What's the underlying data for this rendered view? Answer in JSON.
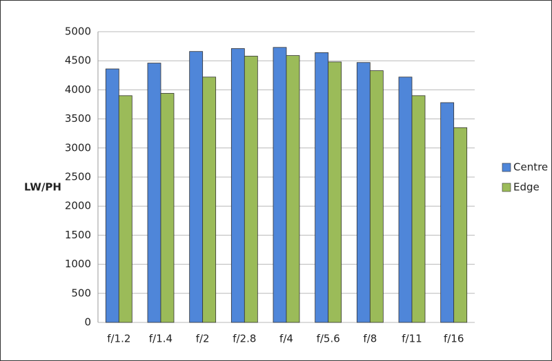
{
  "chart_data": {
    "type": "bar",
    "y_label": "LW/PH",
    "categories": [
      "f/1.2",
      "f/1.4",
      "f/2",
      "f/2.8",
      "f/4",
      "f/5.6",
      "f/8",
      "f/11",
      "f/16"
    ],
    "series": [
      {
        "name": "Centre",
        "color": "#4f86d9",
        "values": [
          4360,
          4460,
          4660,
          4710,
          4730,
          4640,
          4470,
          4220,
          3780
        ]
      },
      {
        "name": "Edge",
        "color": "#9bbb59",
        "values": [
          3900,
          3940,
          4220,
          4580,
          4590,
          4480,
          4330,
          3900,
          3350
        ]
      }
    ],
    "ylim": [
      0,
      5000
    ],
    "yticks": [
      0,
      500,
      1000,
      1500,
      2000,
      2500,
      3000,
      3500,
      4000,
      4500,
      5000
    ],
    "grid": true,
    "legend": "right"
  }
}
